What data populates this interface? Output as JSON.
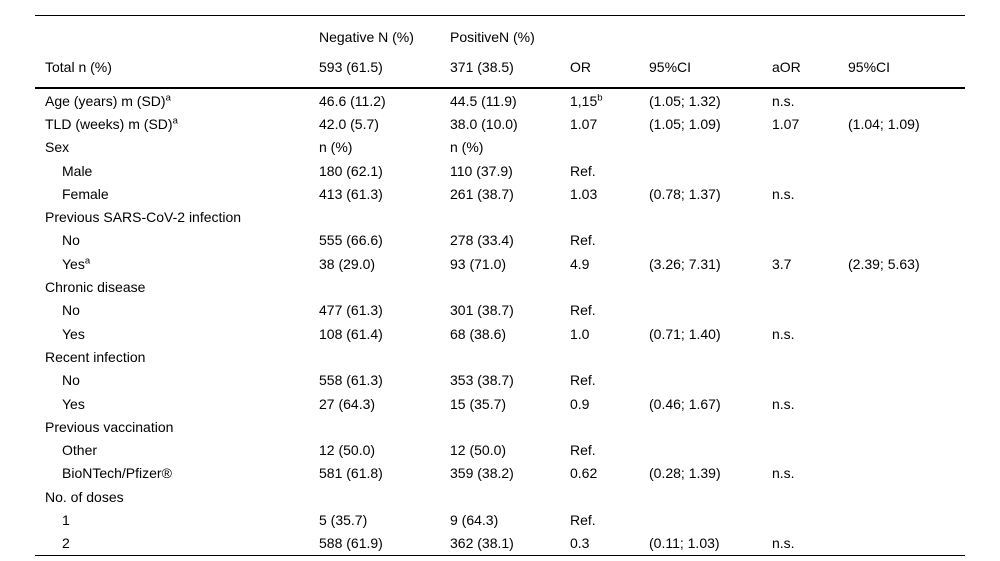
{
  "table": {
    "header1": {
      "negative": "Negative N (%)",
      "positive": "PositiveN (%)"
    },
    "header2": {
      "label": "Total n (%)",
      "negative": "593 (61.5)",
      "positive": "371 (38.5)",
      "or": "OR",
      "ci": "95%CI",
      "aor": "aOR",
      "aci": "95%CI"
    },
    "rows": [
      {
        "label": "Age (years) m (SD)",
        "label_sup": "a",
        "indent": 0,
        "negative": "46.6 (11.2)",
        "positive": "44.5 (11.9)",
        "or": "1,15",
        "or_sup": "b",
        "ci": "(1.05; 1.32)",
        "aor": "n.s.",
        "aci": ""
      },
      {
        "label": "TLD (weeks) m (SD)",
        "label_sup": "a",
        "indent": 0,
        "negative": "42.0 (5.7)",
        "positive": "38.0 (10.0)",
        "or": "1.07",
        "ci": "(1.05; 1.09)",
        "aor": "1.07",
        "aci": "(1.04; 1.09)"
      },
      {
        "label": "Sex",
        "indent": 0,
        "negative": "n (%)",
        "positive": "n (%)",
        "or": "",
        "ci": "",
        "aor": "",
        "aci": ""
      },
      {
        "label": "Male",
        "indent": 1,
        "negative": "180 (62.1)",
        "positive": "110 (37.9)",
        "or": "Ref.",
        "ci": "",
        "aor": "",
        "aci": ""
      },
      {
        "label": "Female",
        "indent": 1,
        "negative": "413 (61.3)",
        "positive": "261 (38.7)",
        "or": "1.03",
        "ci": "(0.78; 1.37)",
        "aor": "n.s.",
        "aci": ""
      },
      {
        "label": "Previous SARS-CoV-2 infection",
        "indent": 0,
        "negative": "",
        "positive": "",
        "or": "",
        "ci": "",
        "aor": "",
        "aci": ""
      },
      {
        "label": "No",
        "indent": 1,
        "negative": "555 (66.6)",
        "positive": "278 (33.4)",
        "or": "Ref.",
        "ci": "",
        "aor": "",
        "aci": ""
      },
      {
        "label": "Yes",
        "label_sup": "a",
        "indent": 1,
        "negative": "38 (29.0)",
        "positive": "93 (71.0)",
        "or": "4.9",
        "ci": "(3.26; 7.31)",
        "aor": "3.7",
        "aci": "(2.39; 5.63)"
      },
      {
        "label": "Chronic disease",
        "indent": 0,
        "negative": "",
        "positive": "",
        "or": "",
        "ci": "",
        "aor": "",
        "aci": ""
      },
      {
        "label": "No",
        "indent": 1,
        "negative": "477 (61.3)",
        "positive": "301 (38.7)",
        "or": "Ref.",
        "ci": "",
        "aor": "",
        "aci": ""
      },
      {
        "label": "Yes",
        "indent": 1,
        "negative": "108 (61.4)",
        "positive": "68 (38.6)",
        "or": "1.0",
        "ci": "(0.71; 1.40)",
        "aor": "n.s.",
        "aci": ""
      },
      {
        "label": "Recent infection",
        "indent": 0,
        "negative": "",
        "positive": "",
        "or": "",
        "ci": "",
        "aor": "",
        "aci": ""
      },
      {
        "label": "No",
        "indent": 1,
        "negative": "558 (61.3)",
        "positive": "353 (38.7)",
        "or": "Ref.",
        "ci": "",
        "aor": "",
        "aci": ""
      },
      {
        "label": "Yes",
        "indent": 1,
        "negative": "27 (64.3)",
        "positive": "15 (35.7)",
        "or": "0.9",
        "ci": "(0.46; 1.67)",
        "aor": "n.s.",
        "aci": ""
      },
      {
        "label": "Previous vaccination",
        "indent": 0,
        "negative": "",
        "positive": "",
        "or": "",
        "ci": "",
        "aor": "",
        "aci": ""
      },
      {
        "label": "Other",
        "indent": 1,
        "negative": "12 (50.0)",
        "positive": "12 (50.0)",
        "or": "Ref.",
        "ci": "",
        "aor": "",
        "aci": ""
      },
      {
        "label": "BioNTech/Pfizer®",
        "indent": 1,
        "negative": "581 (61.8)",
        "positive": "359 (38.2)",
        "or": "0.62",
        "ci": "(0.28; 1.39)",
        "aor": "n.s.",
        "aci": ""
      },
      {
        "label": "No. of doses",
        "indent": 0,
        "negative": "",
        "positive": "",
        "or": "",
        "ci": "",
        "aor": "",
        "aci": ""
      },
      {
        "label": "1",
        "indent": 1,
        "negative": "5 (35.7)",
        "positive": "9 (64.3)",
        "or": "Ref.",
        "ci": "",
        "aor": "",
        "aci": ""
      },
      {
        "label": "2",
        "indent": 1,
        "negative": "588 (61.9)",
        "positive": "362 (38.1)",
        "or": "0.3",
        "ci": "(0.11; 1.03)",
        "aor": "n.s.",
        "aci": ""
      }
    ]
  }
}
